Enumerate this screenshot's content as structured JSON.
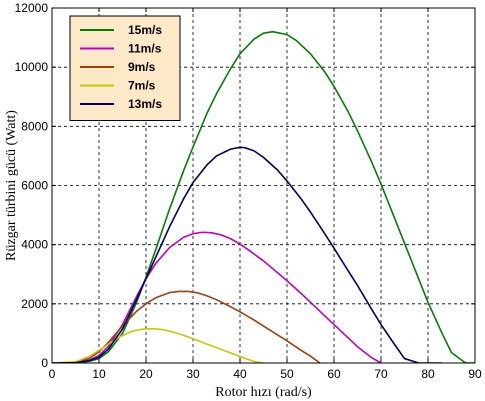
{
  "chart_data": {
    "type": "line",
    "xlabel": "Rotor hızı (rad/s)",
    "ylabel": "Rüzgar türbini gücü (Watt)",
    "xlim": [
      0,
      90
    ],
    "ylim": [
      0,
      12000
    ],
    "xticks": [
      0,
      10,
      20,
      30,
      40,
      50,
      60,
      70,
      80,
      90
    ],
    "yticks": [
      0,
      2000,
      4000,
      6000,
      8000,
      10000,
      12000
    ],
    "grid": true,
    "legend_position": "top-left",
    "series": [
      {
        "name": "15m/s",
        "color": "#008000",
        "x": [
          0,
          5,
          8,
          10,
          12,
          15,
          18,
          20,
          22,
          25,
          28,
          30,
          33,
          35,
          38,
          40,
          43,
          45,
          47,
          50,
          52,
          55,
          58,
          60,
          63,
          65,
          68,
          70,
          72,
          75,
          78,
          80,
          83,
          85,
          88,
          90
        ],
        "y": [
          0,
          10,
          60,
          150,
          380,
          1000,
          2050,
          2900,
          3800,
          5200,
          6500,
          7300,
          8450,
          9100,
          9950,
          10450,
          10950,
          11150,
          11200,
          11100,
          10900,
          10450,
          9850,
          9350,
          8500,
          7850,
          6800,
          6050,
          5250,
          4050,
          2850,
          2050,
          1000,
          350,
          0,
          0
        ]
      },
      {
        "name": "11m/s",
        "color": "#c000c0",
        "x": [
          0,
          5,
          8,
          10,
          12,
          15,
          18,
          20,
          22,
          25,
          28,
          30,
          32,
          34,
          36,
          38,
          40,
          42,
          45,
          48,
          50,
          53,
          55,
          58,
          60,
          63,
          65,
          68,
          70
        ],
        "y": [
          0,
          15,
          100,
          260,
          560,
          1300,
          2250,
          2850,
          3350,
          3900,
          4250,
          4370,
          4420,
          4400,
          4330,
          4200,
          4020,
          3800,
          3450,
          3050,
          2780,
          2350,
          2050,
          1600,
          1300,
          850,
          550,
          180,
          0
        ]
      },
      {
        "name": "9m/s",
        "color": "#a0400a",
        "x": [
          0,
          5,
          8,
          10,
          12,
          15,
          18,
          20,
          22,
          25,
          27,
          29,
          31,
          33,
          35,
          38,
          40,
          43,
          45,
          48,
          50,
          53,
          55,
          57
        ],
        "y": [
          0,
          25,
          160,
          380,
          700,
          1250,
          1750,
          2000,
          2200,
          2380,
          2420,
          2420,
          2370,
          2270,
          2140,
          1900,
          1730,
          1450,
          1250,
          950,
          750,
          430,
          230,
          0
        ]
      },
      {
        "name": "7m/s",
        "color": "#c8c800",
        "x": [
          0,
          5,
          8,
          10,
          12,
          15,
          17,
          19,
          21,
          23,
          25,
          27,
          29,
          31,
          33,
          35,
          37,
          39,
          41,
          43,
          45
        ],
        "y": [
          0,
          40,
          230,
          430,
          640,
          930,
          1070,
          1140,
          1160,
          1140,
          1080,
          990,
          880,
          760,
          640,
          520,
          400,
          280,
          160,
          50,
          0
        ]
      },
      {
        "name": "13m/s",
        "color": "#000060",
        "x": [
          0,
          5,
          8,
          10,
          12,
          15,
          18,
          20,
          22,
          25,
          28,
          30,
          33,
          35,
          38,
          40,
          41,
          43,
          45,
          48,
          50,
          53,
          55,
          58,
          60,
          63,
          65,
          68,
          70,
          73,
          75,
          78,
          80,
          83
        ],
        "y": [
          0,
          10,
          80,
          200,
          470,
          1150,
          2150,
          2850,
          3550,
          4600,
          5550,
          6100,
          6700,
          7000,
          7230,
          7290,
          7280,
          7170,
          6950,
          6520,
          6150,
          5550,
          5100,
          4380,
          3880,
          3120,
          2620,
          1820,
          1300,
          600,
          150,
          0,
          0,
          0
        ]
      }
    ]
  }
}
